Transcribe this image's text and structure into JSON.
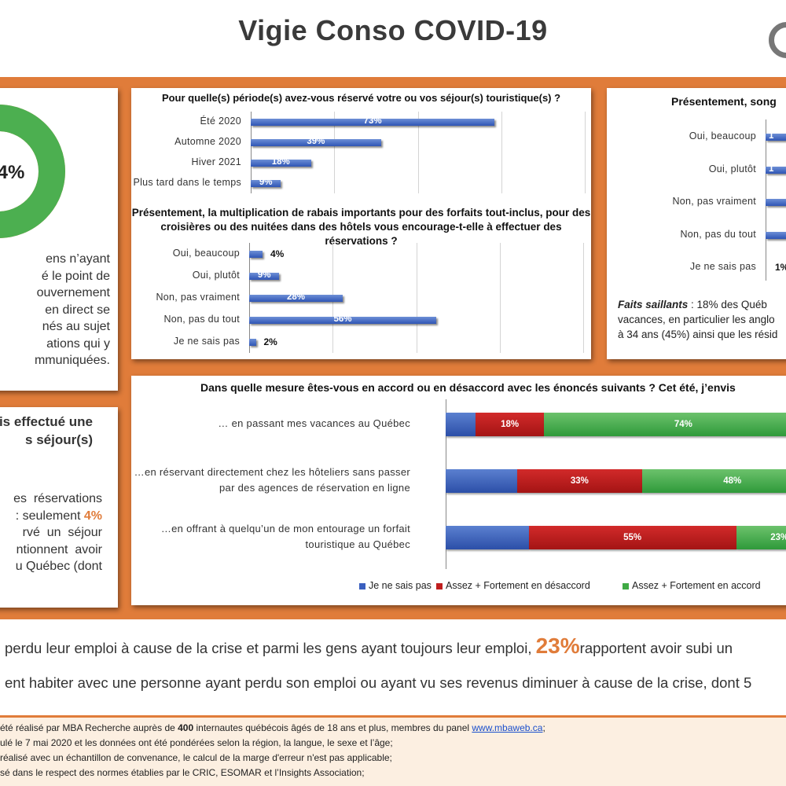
{
  "header": {
    "title": "Vigie Conso COVID-19"
  },
  "left_top": {
    "donut_label": "4%",
    "lines": [
      "ens n’ayant",
      "é le point de",
      "ouvernement",
      "en direct se",
      "nés au sujet",
      "ations qui y",
      "mmuniquées."
    ]
  },
  "left_bottom": {
    "heading": [
      "is effectué une",
      "s séjour(s)"
    ],
    "lines": [
      "es  réservations",
      ": seulement ",
      "rvé  un  séjour",
      "ntionnent  avoir",
      "u Québec (dont"
    ],
    "highlight": "4%"
  },
  "right_panel": {
    "question": "Présentement, song",
    "labels": [
      "Oui, beaucoup",
      "Oui, plutôt",
      "Non, pas vraiment",
      "Non, pas du tout",
      "Je ne sais pas"
    ],
    "partial_values": [
      "1",
      "1",
      "",
      "",
      "1%"
    ],
    "faits_bold": "Faits saillants",
    "faits_lines": [
      " : 18% des Québ",
      "vacances, en particulier les anglo",
      "à 34 ans (45%) ainsi que les résid"
    ]
  },
  "chart_data": [
    {
      "type": "bar",
      "title": "Pour quelle(s) période(s) avez-vous réservé votre ou vos séjour(s) touristique(s) ?",
      "categories": [
        "Été 2020",
        "Automne 2020",
        "Hiver 2021",
        "Plus tard dans le temps"
      ],
      "values": [
        73,
        39,
        18,
        9
      ],
      "value_labels": [
        "73%",
        "39%",
        "18%",
        "9%"
      ],
      "orientation": "horizontal",
      "xlim": [
        0,
        100
      ],
      "color": "#3a5fbf"
    },
    {
      "type": "bar",
      "title": "Présentement, la multiplication de rabais importants pour des forfaits tout-inclus, pour des croisières ou des nuitées dans des hôtels vous encourage-t-elle à effectuer des réservations ?",
      "title_lines": [
        "Présentement, la multiplication de rabais importants pour des forfaits tout-inclus, pour des",
        "croisières ou des nuitées dans des hôtels vous encourage-t-elle à effectuer des réservations ?"
      ],
      "categories": [
        "Oui, beaucoup",
        "Oui, plutôt",
        "Non, pas vraiment",
        "Non, pas du tout",
        "Je ne sais pas"
      ],
      "values": [
        4,
        9,
        28,
        56,
        2
      ],
      "value_labels": [
        "4%",
        "9%",
        "28%",
        "56%",
        "2%"
      ],
      "orientation": "horizontal",
      "xlim": [
        0,
        100
      ],
      "color": "#3a5fbf"
    },
    {
      "type": "bar",
      "stacked": true,
      "title": "Dans quelle mesure êtes-vous en accord ou en désaccord avec les énoncés suivants ? Cet été, j’envis",
      "categories": [
        [
          "… en passant mes vacances au Québec"
        ],
        [
          "…en réservant directement chez les hôteliers sans passer",
          "par des agences de réservation en ligne"
        ],
        [
          "…en offrant à quelqu’un de mon entourage un forfait",
          "touristique au Québec"
        ]
      ],
      "series": [
        {
          "name": "Je ne sais pas",
          "values": [
            8,
            19,
            22
          ],
          "labels": [
            "",
            "",
            ""
          ],
          "color": "#3a5fbf"
        },
        {
          "name": "Assez + Fortement en désaccord",
          "values": [
            18,
            33,
            55
          ],
          "labels": [
            "18%",
            "33%",
            "55%"
          ],
          "color": "#c01e1e"
        },
        {
          "name": "Assez + Fortement en accord",
          "values": [
            74,
            48,
            23
          ],
          "labels": [
            "74%",
            "48%",
            "23%"
          ],
          "color": "#3faa45"
        }
      ],
      "xlim": [
        0,
        100
      ],
      "legend": "bottom"
    }
  ],
  "bottom": {
    "line1_pre": "perdu leur emploi à cause de la crise et parmi les gens ayant toujours leur emploi, ",
    "line1_hl": "23%",
    "line1_post": "rapportent avoir subi un",
    "line2": "ent habiter avec une personne ayant perdu son emploi ou ayant vu ses revenus diminuer à cause de la crise, dont 5"
  },
  "footer": {
    "l1_pre": "été réalisé par MBA Recherche auprès de ",
    "l1_bold": "400",
    "l1_mid": " internautes québécois âgés de 18 ans et plus, membres du panel ",
    "l1_link": "www.mbaweb.ca",
    "l1_post": ";",
    "l2": "ulé le 7 mai 2020 et les données ont été pondérées selon la région, la langue, le sexe et l’âge;",
    "l3": "réalisé avec un échantillon de convenance, le calcul de la marge d'erreur n'est pas applicable;",
    "l4": "sé dans le respect des normes établies par le CRIC, ESOMAR et l’Insights Association;"
  }
}
